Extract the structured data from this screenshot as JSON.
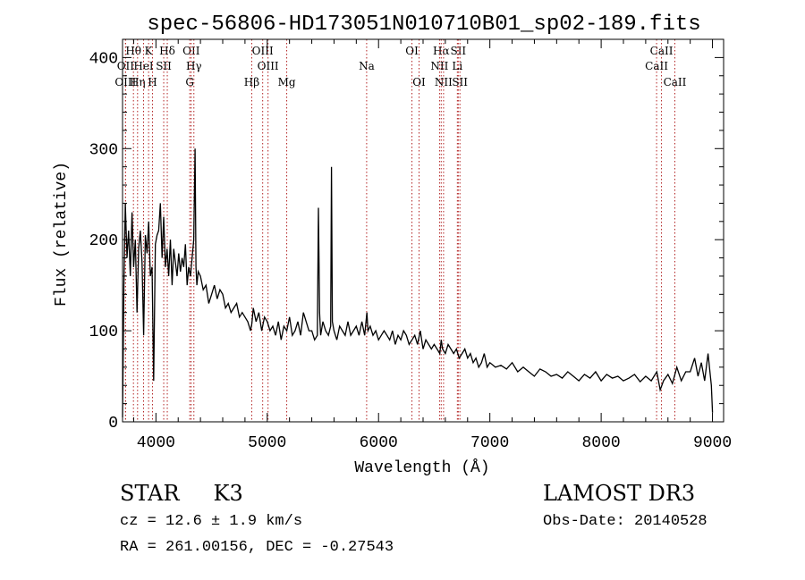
{
  "chart_data": {
    "type": "line",
    "title": "spec-56806-HD173051N010710B01_sp02-189.fits",
    "xlabel": "Wavelength (Å)",
    "ylabel": "Flux (relative)",
    "xlim": [
      3700,
      9100
    ],
    "ylim": [
      0,
      420
    ],
    "xticks": [
      4000,
      5000,
      6000,
      7000,
      8000,
      9000
    ],
    "yticks": [
      0,
      100,
      200,
      300,
      400
    ],
    "grid": false,
    "series": [
      {
        "name": "flux",
        "x": [
          3700,
          3712,
          3725,
          3740,
          3755,
          3770,
          3785,
          3800,
          3815,
          3830,
          3845,
          3860,
          3875,
          3890,
          3905,
          3920,
          3935,
          3950,
          3965,
          3980,
          3995,
          4010,
          4025,
          4040,
          4055,
          4070,
          4085,
          4100,
          4115,
          4130,
          4145,
          4160,
          4175,
          4190,
          4205,
          4220,
          4235,
          4250,
          4265,
          4280,
          4295,
          4310,
          4325,
          4340,
          4352,
          4360,
          4368,
          4380,
          4400,
          4425,
          4450,
          4475,
          4500,
          4525,
          4550,
          4575,
          4600,
          4625,
          4650,
          4675,
          4700,
          4725,
          4750,
          4775,
          4800,
          4825,
          4850,
          4862,
          4875,
          4900,
          4925,
          4950,
          4975,
          5000,
          5025,
          5050,
          5075,
          5100,
          5125,
          5150,
          5175,
          5200,
          5225,
          5250,
          5275,
          5300,
          5325,
          5350,
          5375,
          5400,
          5425,
          5450,
          5460,
          5470,
          5480,
          5500,
          5525,
          5550,
          5570,
          5577,
          5585,
          5600,
          5625,
          5650,
          5675,
          5700,
          5725,
          5750,
          5775,
          5800,
          5825,
          5850,
          5875,
          5895,
          5905,
          5925,
          5950,
          5975,
          6000,
          6025,
          6050,
          6075,
          6100,
          6125,
          6150,
          6175,
          6200,
          6225,
          6250,
          6275,
          6300,
          6325,
          6350,
          6375,
          6400,
          6425,
          6450,
          6475,
          6500,
          6525,
          6550,
          6563,
          6575,
          6600,
          6625,
          6650,
          6675,
          6700,
          6725,
          6750,
          6775,
          6800,
          6825,
          6850,
          6875,
          6900,
          6925,
          6950,
          6975,
          7000,
          7050,
          7100,
          7150,
          7200,
          7250,
          7300,
          7350,
          7400,
          7450,
          7500,
          7550,
          7600,
          7650,
          7700,
          7750,
          7800,
          7850,
          7900,
          7950,
          8000,
          8050,
          8100,
          8150,
          8200,
          8250,
          8300,
          8350,
          8400,
          8450,
          8500,
          8530,
          8560,
          8600,
          8640,
          8680,
          8720,
          8760,
          8800,
          8840,
          8870,
          8900,
          8930,
          8960,
          8990,
          9000
        ],
        "y": [
          5,
          150,
          240,
          180,
          210,
          160,
          230,
          170,
          200,
          120,
          190,
          210,
          175,
          95,
          205,
          185,
          220,
          160,
          170,
          45,
          195,
          205,
          210,
          240,
          180,
          225,
          170,
          190,
          160,
          200,
          150,
          190,
          175,
          160,
          185,
          165,
          180,
          170,
          195,
          150,
          170,
          160,
          180,
          200,
          300,
          170,
          150,
          165,
          160,
          145,
          150,
          130,
          140,
          150,
          135,
          145,
          140,
          125,
          130,
          120,
          125,
          130,
          115,
          120,
          115,
          110,
          100,
          108,
          125,
          110,
          120,
          100,
          115,
          110,
          100,
          105,
          95,
          110,
          90,
          105,
          100,
          115,
          95,
          100,
          110,
          95,
          120,
          110,
          100,
          100,
          90,
          95,
          235,
          120,
          95,
          110,
          100,
          95,
          105,
          280,
          110,
          100,
          90,
          105,
          100,
          95,
          110,
          95,
          100,
          105,
          95,
          110,
          95,
          120,
          100,
          105,
          95,
          100,
          90,
          95,
          100,
          95,
          90,
          100,
          85,
          95,
          90,
          100,
          95,
          85,
          90,
          95,
          85,
          100,
          80,
          90,
          85,
          80,
          85,
          80,
          75,
          90,
          80,
          75,
          85,
          80,
          75,
          80,
          70,
          75,
          80,
          70,
          75,
          65,
          70,
          60,
          65,
          75,
          60,
          65,
          60,
          62,
          58,
          65,
          55,
          60,
          55,
          50,
          58,
          55,
          50,
          52,
          48,
          55,
          50,
          45,
          52,
          48,
          55,
          45,
          52,
          48,
          50,
          45,
          48,
          52,
          44,
          50,
          45,
          55,
          35,
          45,
          52,
          42,
          60,
          45,
          55,
          55,
          70,
          50,
          65,
          45,
          75,
          40,
          10
        ]
      }
    ],
    "line_markers": [
      {
        "label": "Hθ",
        "x": 3798,
        "row": 1
      },
      {
        "label": "OII",
        "x": 3727,
        "row": 2
      },
      {
        "label": "OIII",
        "x": 3727,
        "row": 3
      },
      {
        "label": "Hη",
        "x": 3835,
        "row": 3
      },
      {
        "label": "K",
        "x": 3934,
        "row": 1
      },
      {
        "label": "HeI",
        "x": 3889,
        "row": 2
      },
      {
        "label": "H",
        "x": 3969,
        "row": 3
      },
      {
        "label": "SII",
        "x": 4070,
        "row": 2
      },
      {
        "label": "Hδ",
        "x": 4102,
        "row": 1
      },
      {
        "label": "OII",
        "x": 4317,
        "row": 1
      },
      {
        "label": "Hγ",
        "x": 4341,
        "row": 2
      },
      {
        "label": "G",
        "x": 4304,
        "row": 3
      },
      {
        "label": "Hβ",
        "x": 4861,
        "row": 3
      },
      {
        "label": "OIII",
        "x": 4959,
        "row": 1
      },
      {
        "label": "OIII",
        "x": 5007,
        "row": 2
      },
      {
        "label": "Mg",
        "x": 5175,
        "row": 3
      },
      {
        "label": "Na",
        "x": 5893,
        "row": 2
      },
      {
        "label": "OI",
        "x": 6300,
        "row": 1
      },
      {
        "label": "OI",
        "x": 6364,
        "row": 3
      },
      {
        "label": "Hα",
        "x": 6563,
        "row": 1
      },
      {
        "label": "NII",
        "x": 6548,
        "row": 2
      },
      {
        "label": "NII",
        "x": 6584,
        "row": 3
      },
      {
        "label": "SII",
        "x": 6716,
        "row": 1
      },
      {
        "label": "Li",
        "x": 6708,
        "row": 2
      },
      {
        "label": "SII",
        "x": 6731,
        "row": 3
      },
      {
        "label": "CaII",
        "x": 8542,
        "row": 1
      },
      {
        "label": "CaII",
        "x": 8498,
        "row": 2
      },
      {
        "label": "CaII",
        "x": 8662,
        "row": 3
      }
    ]
  },
  "info": {
    "object_class": "STAR",
    "subclass": "K3",
    "cz_line": "cz = 12.6 ± 1.9 km/s",
    "radec_line": "RA = 261.00156, DEC =  -0.27543",
    "survey": "LAMOST DR3",
    "obs_date_line": "Obs-Date: 20140528"
  },
  "colors": {
    "spectrum": "#000000",
    "marker_line": "#b22222",
    "axes": "#000000"
  }
}
